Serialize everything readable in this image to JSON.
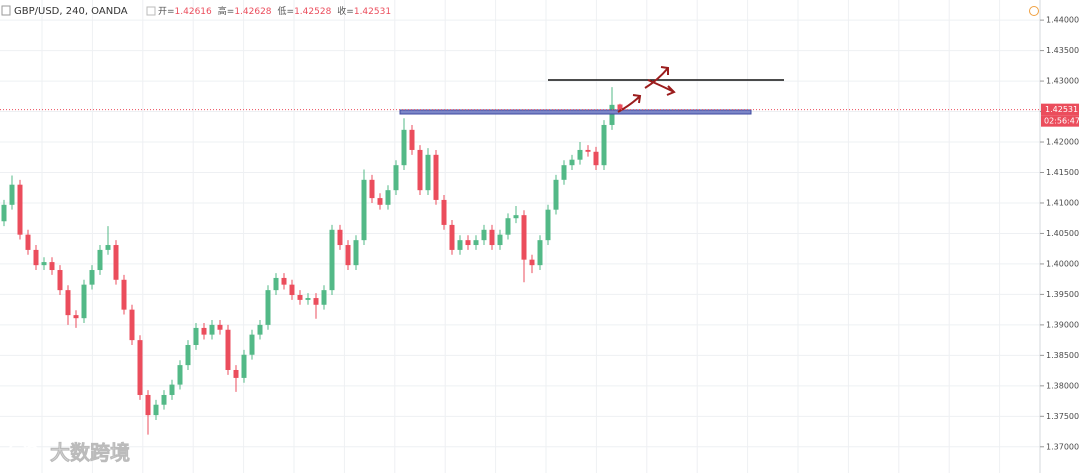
{
  "chart_data": {
    "type": "candlestick",
    "title": "GBP/USD, 240, OANDA",
    "ohlc_labels": [
      "开=",
      "高=",
      "低=",
      "收="
    ],
    "countdown": "02:56:47",
    "watermark": "大数跨境",
    "up_color": "#53b987",
    "down_color": "#eb4d5c",
    "open": [
      1.407,
      1.4097,
      1.413,
      1.4048,
      1.4023,
      1.3998,
      1.4003,
      1.399,
      1.3957,
      1.3916,
      1.3911,
      1.3966,
      1.399,
      1.4023,
      1.4031,
      1.3974,
      1.3925,
      1.3875,
      1.3785,
      1.3752,
      1.3769,
      1.3785,
      1.3802,
      1.3834,
      1.3867,
      1.3895,
      1.3884,
      1.39,
      1.3892,
      1.3826,
      1.3813,
      1.3851,
      1.3884,
      1.39,
      1.3957,
      1.3977,
      1.3966,
      1.3949,
      1.3941,
      1.3944,
      1.3933,
      1.3957,
      1.4056,
      1.4031,
      1.3998,
      1.4039,
      1.4138,
      1.4108,
      1.4097,
      1.4121,
      1.4162,
      1.422,
      1.4187,
      1.4121,
      1.4179,
      1.4105,
      1.4064,
      1.4023,
      1.4039,
      1.4031,
      1.4039,
      1.4056,
      1.4031,
      1.4048,
      1.4075,
      1.408,
      1.4007,
      1.3998,
      1.4039,
      1.4089,
      1.4138,
      1.4162,
      1.4171,
      1.4187,
      1.4184,
      1.4162,
      1.4228,
      1.42616
    ],
    "high": [
      1.4105,
      1.4145,
      1.4138,
      1.4056,
      1.4031,
      1.4011,
      1.4011,
      1.3998,
      1.3965,
      1.3924,
      1.3974,
      1.3998,
      1.4031,
      1.4062,
      1.4039,
      1.3982,
      1.3933,
      1.3883,
      1.3793,
      1.3777,
      1.3793,
      1.381,
      1.3842,
      1.3875,
      1.3903,
      1.3903,
      1.3908,
      1.3908,
      1.39,
      1.3834,
      1.3859,
      1.3892,
      1.3908,
      1.3965,
      1.3985,
      1.3985,
      1.3974,
      1.3957,
      1.3952,
      1.3952,
      1.3965,
      1.4064,
      1.4064,
      1.4039,
      1.4047,
      1.4155,
      1.4146,
      1.4116,
      1.4129,
      1.417,
      1.4239,
      1.4228,
      1.4195,
      1.419,
      1.4187,
      1.4113,
      1.4072,
      1.4047,
      1.4047,
      1.4047,
      1.4064,
      1.4064,
      1.4056,
      1.4083,
      1.4095,
      1.4088,
      1.4015,
      1.4047,
      1.4097,
      1.4146,
      1.417,
      1.4179,
      1.42,
      1.4195,
      1.4192,
      1.4236,
      1.429,
      1.42628
    ],
    "low": [
      1.4062,
      1.4089,
      1.404,
      1.4015,
      1.399,
      1.399,
      1.3982,
      1.3949,
      1.39,
      1.3895,
      1.3903,
      1.3958,
      1.3982,
      1.4015,
      1.3966,
      1.3917,
      1.3867,
      1.3777,
      1.372,
      1.3744,
      1.3761,
      1.3777,
      1.3794,
      1.3826,
      1.3859,
      1.3876,
      1.3876,
      1.3884,
      1.3818,
      1.379,
      1.3805,
      1.3843,
      1.3876,
      1.3892,
      1.3949,
      1.3958,
      1.3941,
      1.3933,
      1.3933,
      1.391,
      1.3925,
      1.3949,
      1.4023,
      1.399,
      1.399,
      1.4031,
      1.41,
      1.4089,
      1.4089,
      1.4113,
      1.4154,
      1.4179,
      1.4113,
      1.4113,
      1.4097,
      1.4056,
      1.4015,
      1.4015,
      1.4023,
      1.4023,
      1.4031,
      1.4023,
      1.4023,
      1.404,
      1.4067,
      1.397,
      1.3985,
      1.399,
      1.4031,
      1.4081,
      1.413,
      1.4154,
      1.4163,
      1.4176,
      1.4154,
      1.4154,
      1.422,
      1.42528
    ],
    "close": [
      1.4097,
      1.413,
      1.4048,
      1.4023,
      1.3998,
      1.4003,
      1.399,
      1.3957,
      1.3916,
      1.3911,
      1.3966,
      1.399,
      1.4023,
      1.4031,
      1.3974,
      1.3925,
      1.3875,
      1.3785,
      1.3752,
      1.3769,
      1.3785,
      1.3802,
      1.3834,
      1.3867,
      1.3895,
      1.3884,
      1.39,
      1.3892,
      1.3826,
      1.3813,
      1.3851,
      1.3884,
      1.39,
      1.3957,
      1.3977,
      1.3966,
      1.3949,
      1.3941,
      1.3944,
      1.3933,
      1.3957,
      1.4056,
      1.4031,
      1.3998,
      1.4039,
      1.4138,
      1.4108,
      1.4097,
      1.4121,
      1.4162,
      1.422,
      1.4187,
      1.4121,
      1.4179,
      1.4105,
      1.4064,
      1.4023,
      1.4039,
      1.4031,
      1.4039,
      1.4056,
      1.4031,
      1.4048,
      1.4075,
      1.408,
      1.4007,
      1.3998,
      1.4039,
      1.4089,
      1.4138,
      1.4162,
      1.4171,
      1.4187,
      1.4184,
      1.4162,
      1.4228,
      1.4261,
      1.42531
    ],
    "ylim": [
      1.3657,
      1.4433
    ],
    "yticks": [
      {
        "value": 1.44,
        "label": "1.44000"
      },
      {
        "value": 1.435,
        "label": "1.43500"
      },
      {
        "value": 1.43,
        "label": "1.43000"
      },
      {
        "value": 1.425,
        "label": "1.42500"
      },
      {
        "value": 1.42,
        "label": "1.42000"
      },
      {
        "value": 1.415,
        "label": "1.41500"
      },
      {
        "value": 1.41,
        "label": "1.41000"
      },
      {
        "value": 1.405,
        "label": "1.40500"
      },
      {
        "value": 1.4,
        "label": "1.40000"
      },
      {
        "value": 1.395,
        "label": "1.39500"
      },
      {
        "value": 1.39,
        "label": "1.39000"
      },
      {
        "value": 1.385,
        "label": "1.38500"
      },
      {
        "value": 1.38,
        "label": "1.38000"
      },
      {
        "value": 1.375,
        "label": "1.37500"
      },
      {
        "value": 1.37,
        "label": "1.37000"
      }
    ],
    "grid": true
  }
}
